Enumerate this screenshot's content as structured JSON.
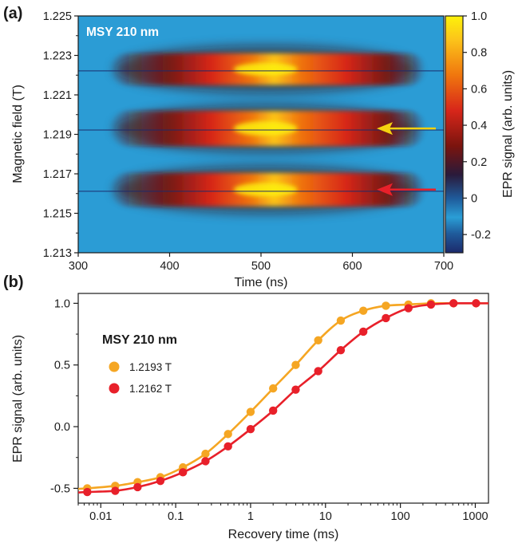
{
  "chart_data": [
    {
      "panel_label": "(a)",
      "type": "heatmap",
      "overlay_label": "MSY 210 nm",
      "xlabel": "Time (ns)",
      "ylabel": "Magnetic field (T)",
      "colorbar_label": "EPR signal (arb. units)",
      "xlim": [
        300,
        700
      ],
      "ylim": [
        1.213,
        1.225
      ],
      "x_ticks": [
        300,
        400,
        500,
        600,
        700
      ],
      "y_ticks": [
        "1.213",
        "1.215",
        "1.217",
        "1.219",
        "1.221",
        "1.223",
        "1.225"
      ],
      "colorbar_range": [
        -0.3,
        1.0
      ],
      "colorbar_ticks": [
        "-0.2",
        "0",
        "0.2",
        "0.4",
        "0.6",
        "0.8",
        "1.0"
      ],
      "signal_bands": [
        {
          "field_T": 1.2223,
          "peak": 0.9
        },
        {
          "field_T": 1.2193,
          "peak": 1.0
        },
        {
          "field_T": 1.2162,
          "peak": 0.95
        }
      ],
      "arrows": [
        {
          "field_T": 1.2193,
          "color": "#f5d20f"
        },
        {
          "field_T": 1.2162,
          "color": "#e8202a"
        }
      ]
    },
    {
      "panel_label": "(b)",
      "type": "scatter",
      "xlabel": "Recovery time (ms)",
      "ylabel": "EPR signal (arb. units)",
      "x_scale": "log",
      "xlim": [
        0.005,
        1500
      ],
      "ylim": [
        -0.62,
        1.08
      ],
      "x_ticks": [
        "0.01",
        "0.1",
        "1",
        "10",
        "100",
        "1000"
      ],
      "y_ticks": [
        "-0.5",
        "0.0",
        "0.5",
        "1.0"
      ],
      "legend_title": "MSY 210 nm",
      "legend_position": "upper-left",
      "series": [
        {
          "name": "1.2193 T",
          "color": "#f5a623",
          "x": [
            0.0066,
            0.0156,
            0.031,
            0.0625,
            0.125,
            0.25,
            0.5,
            1,
            2,
            4,
            8,
            16,
            32,
            64,
            128,
            256,
            512,
            1024
          ],
          "y": [
            -0.5,
            -0.48,
            -0.45,
            -0.41,
            -0.33,
            -0.22,
            -0.06,
            0.12,
            0.31,
            0.5,
            0.7,
            0.86,
            0.94,
            0.98,
            0.99,
            1.0,
            1.0,
            1.0
          ]
        },
        {
          "name": "1.2162 T",
          "color": "#e8202a",
          "x": [
            0.0066,
            0.0156,
            0.031,
            0.0625,
            0.125,
            0.25,
            0.5,
            1,
            2,
            4,
            8,
            16,
            32,
            64,
            128,
            256,
            512,
            1024
          ],
          "y": [
            -0.53,
            -0.52,
            -0.49,
            -0.44,
            -0.37,
            -0.28,
            -0.16,
            -0.02,
            0.13,
            0.3,
            0.45,
            0.62,
            0.77,
            0.88,
            0.96,
            0.99,
            1.0,
            1.0
          ]
        }
      ]
    }
  ]
}
